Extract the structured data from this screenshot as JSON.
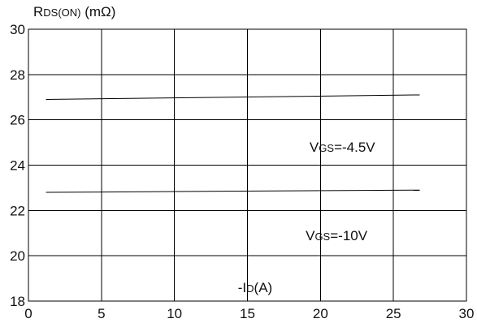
{
  "chart_data": {
    "type": "line",
    "title": "",
    "xlabel": {
      "prefix": "-I",
      "sub": "D",
      "suffix": "(A)"
    },
    "ylabel": {
      "prefix": "R",
      "sub": "DS(ON)",
      "suffix": " (mΩ)"
    },
    "xlim": [
      0,
      30
    ],
    "ylim": [
      18,
      30
    ],
    "xticks": [
      0,
      5,
      10,
      15,
      20,
      25,
      30
    ],
    "yticks": [
      18,
      20,
      22,
      24,
      26,
      28,
      30
    ],
    "grid": true,
    "series": [
      {
        "x": [
          1.2,
          26.8
        ],
        "y": [
          26.9,
          27.1
        ]
      },
      {
        "x": [
          1.2,
          26.8
        ],
        "y": [
          22.8,
          22.9
        ]
      }
    ],
    "annotations": [
      {
        "prefix": "V",
        "sub": "GS",
        "suffix": "=-4.5V",
        "x": 21.5,
        "y": 24.8
      },
      {
        "prefix": "V",
        "sub": "GS",
        "suffix": "=-10V",
        "x": 21.1,
        "y": 20.9
      }
    ],
    "legend_mark": {
      "x": [
        19.2,
        22.2
      ],
      "y": [
        28.0,
        28.0
      ]
    }
  }
}
